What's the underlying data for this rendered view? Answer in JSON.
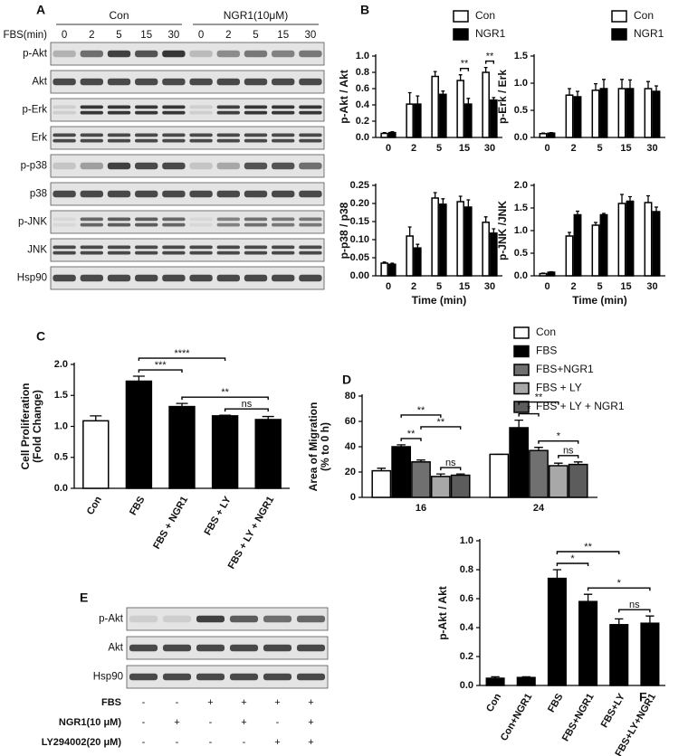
{
  "chart_data": [
    {
      "type": "bar",
      "panel": "B",
      "ylabel": [
        "p-Akt / Akt"
      ],
      "categories": [
        "0",
        "2",
        "5",
        "15",
        "30"
      ],
      "series": [
        {
          "name": "Con",
          "color": "#ffffff",
          "values": [
            0.05,
            0.41,
            0.75,
            0.7,
            0.8
          ],
          "errors": [
            0.01,
            0.14,
            0.06,
            0.07,
            0.06
          ]
        },
        {
          "name": "NGR1",
          "color": "#000000",
          "values": [
            0.06,
            0.41,
            0.53,
            0.41,
            0.46
          ],
          "errors": [
            0.01,
            0.1,
            0.04,
            0.07,
            0.03
          ]
        }
      ],
      "ylim": [
        0,
        1.0
      ],
      "yticks": [
        {
          "value": 0,
          "label": "0.0"
        },
        0.2,
        0.4,
        0.6,
        0.8,
        {
          "value": 1.0,
          "label": "1.0"
        }
      ],
      "legend": "top-right",
      "brackets": [
        {
          "category": 3,
          "from": 0,
          "to": 1,
          "label": "**"
        },
        {
          "category": 4,
          "from": 0,
          "to": 1,
          "label": "**"
        }
      ]
    },
    {
      "type": "bar",
      "ylabel": [
        "p-Erk / Erk"
      ],
      "categories": [
        "0",
        "2",
        "5",
        "15",
        "30"
      ],
      "series": [
        {
          "name": "Con",
          "color": "#ffffff",
          "values": [
            0.07,
            0.78,
            0.87,
            0.9,
            0.9
          ],
          "errors": [
            0.01,
            0.12,
            0.12,
            0.17,
            0.13
          ]
        },
        {
          "name": "NGR1",
          "color": "#000000",
          "values": [
            0.08,
            0.75,
            0.9,
            0.9,
            0.85
          ],
          "errors": [
            0.01,
            0.1,
            0.17,
            0.16,
            0.1
          ]
        }
      ],
      "ylim": [
        0,
        1.5
      ],
      "yticks": [
        {
          "value": 0,
          "label": "0.0"
        },
        0.5,
        {
          "value": 1.0,
          "label": "1.0"
        },
        1.5
      ],
      "legend": "top-right"
    },
    {
      "type": "bar",
      "ylabel": [
        "p-p38 / p38"
      ],
      "xlabel": "Time (min)",
      "categories": [
        "0",
        "2",
        "5",
        "15",
        "30"
      ],
      "series": [
        {
          "name": "Con",
          "color": "#ffffff",
          "values": [
            0.035,
            0.11,
            0.215,
            0.205,
            0.148
          ],
          "errors": [
            0.003,
            0.025,
            0.015,
            0.015,
            0.015
          ]
        },
        {
          "name": "NGR1",
          "color": "#000000",
          "values": [
            0.032,
            0.077,
            0.198,
            0.19,
            0.118
          ],
          "errors": [
            0.003,
            0.01,
            0.015,
            0.02,
            0.012
          ]
        }
      ],
      "ylim": [
        0,
        0.25
      ],
      "yticks": [
        {
          "value": 0,
          "label": "0.00"
        },
        0.05,
        {
          "value": 0.1,
          "label": "0.10"
        },
        0.15,
        {
          "value": 0.2,
          "label": "0.20"
        },
        0.25
      ]
    },
    {
      "type": "bar",
      "ylabel": [
        "p-JNK /JNK"
      ],
      "xlabel": "Time (min)",
      "categories": [
        "0",
        "2",
        "5",
        "15",
        "30"
      ],
      "series": [
        {
          "name": "Con",
          "color": "#ffffff",
          "values": [
            0.05,
            0.88,
            1.12,
            1.6,
            1.62
          ],
          "errors": [
            0.01,
            0.08,
            0.06,
            0.2,
            0.15
          ]
        },
        {
          "name": "NGR1",
          "color": "#000000",
          "values": [
            0.08,
            1.35,
            1.35,
            1.65,
            1.42
          ],
          "errors": [
            0.01,
            0.08,
            0.03,
            0.1,
            0.1
          ]
        }
      ],
      "ylim": [
        0,
        2.0
      ],
      "yticks": [
        {
          "value": 0,
          "label": "0.0"
        },
        0.5,
        {
          "value": 1.0,
          "label": "1.0"
        },
        1.5,
        {
          "value": 2.0,
          "label": "2.0"
        }
      ]
    },
    {
      "type": "bar",
      "panel": "C",
      "ylabel": [
        "Cell Proliferation",
        "(Fold Change)"
      ],
      "xtick_rotation": -60,
      "categories": [
        "Con",
        "FBS",
        "FBS + NGR1",
        "FBS + LY",
        "FBS + LY + NGR1"
      ],
      "values": [
        1.09,
        1.73,
        1.32,
        1.17,
        1.11
      ],
      "errors": [
        0.08,
        0.08,
        0.05,
        0.01,
        0.05
      ],
      "colors": [
        "#ffffff",
        "#000000",
        "#000000",
        "#000000",
        "#000000"
      ],
      "ylim": [
        0,
        2.0
      ],
      "yticks": [
        {
          "value": 0,
          "label": "0.0"
        },
        0.5,
        {
          "value": 1.0,
          "label": "1.0"
        },
        1.5,
        {
          "value": 2.0,
          "label": "2.0"
        }
      ],
      "brackets": [
        {
          "from": 3,
          "to": 4,
          "label": "ns"
        },
        {
          "from": 2,
          "to": 4,
          "label": "**"
        },
        {
          "from": 1,
          "to": 2,
          "label": "***"
        },
        {
          "from": 1,
          "to": 3,
          "label": "****"
        }
      ]
    },
    {
      "type": "bar",
      "panel": "D",
      "ylabel": [
        "Area of Migration",
        "(% to 0 h)"
      ],
      "categories": [
        "16",
        "24"
      ],
      "series": [
        {
          "name": "Con",
          "color": "#ffffff",
          "values": [
            21,
            34
          ],
          "errors": [
            2,
            0
          ]
        },
        {
          "name": "FBS",
          "color": "#000000",
          "values": [
            40,
            55
          ],
          "errors": [
            1.5,
            6
          ]
        },
        {
          "name": "FBS+NGR1",
          "color": "#707070",
          "values": [
            28,
            37
          ],
          "errors": [
            1.5,
            2.5
          ]
        },
        {
          "name": "FBS + LY",
          "color": "#a8a8a8",
          "values": [
            16.5,
            25
          ],
          "errors": [
            2,
            2
          ]
        },
        {
          "name": "FBS + LY + NGR1",
          "color": "#5c5c5c",
          "values": [
            17.5,
            26
          ],
          "errors": [
            1,
            2
          ]
        }
      ],
      "ylim": [
        0,
        80
      ],
      "yticks": [
        0,
        20,
        40,
        60,
        80
      ],
      "legend": "right",
      "brackets": [
        {
          "category": 0,
          "from": 1,
          "to": 2,
          "label": "**"
        },
        {
          "category": 0,
          "from": 3,
          "to": 4,
          "label": "ns"
        },
        {
          "category": 0,
          "from": 2,
          "to": 4,
          "label": "**"
        },
        {
          "category": 0,
          "from": 1,
          "to": 3,
          "label": "**"
        },
        {
          "category": 1,
          "from": 3,
          "to": 4,
          "label": "ns"
        },
        {
          "category": 1,
          "from": 2,
          "to": 4,
          "label": "*"
        },
        {
          "category": 1,
          "from": 1,
          "to": 2,
          "label": "*"
        },
        {
          "category": 1,
          "from": 1,
          "to": 3,
          "label": "**"
        }
      ]
    },
    {
      "type": "bar",
      "panel": "F",
      "ylabel": [
        "p-Akt / Akt"
      ],
      "xtick_rotation": -60,
      "categories": [
        "Con",
        "Con+NGR1",
        "FBS",
        "FBS+NGR1",
        "FBS+LY",
        "FBS+LY+NGR1"
      ],
      "values": [
        0.05,
        0.055,
        0.74,
        0.58,
        0.42,
        0.43
      ],
      "errors": [
        0.01,
        0.005,
        0.06,
        0.05,
        0.04,
        0.05
      ],
      "color": "#000000",
      "ylim": [
        0,
        1.0
      ],
      "yticks": [
        {
          "value": 0,
          "label": "0.0"
        },
        0.2,
        0.4,
        0.6,
        0.8,
        {
          "value": 1.0,
          "label": "1.0"
        }
      ],
      "brackets": [
        {
          "from": 4,
          "to": 5,
          "label": "ns"
        },
        {
          "from": 3,
          "to": 5,
          "label": "*"
        },
        {
          "from": 2,
          "to": 3,
          "label": "*"
        },
        {
          "from": 2,
          "to": 4,
          "label": "**"
        }
      ]
    }
  ],
  "blots": [
    {
      "label": "A",
      "row_label": "FBS(min)",
      "groups": [
        "Con",
        "NGR1(10μM)"
      ],
      "lanes": [
        "0",
        "2",
        "5",
        "15",
        "30",
        "0",
        "2",
        "5",
        "15",
        "30"
      ],
      "rows": [
        "p-Akt",
        "Akt",
        "p-Erk",
        "Erk",
        "p-p38",
        "p38",
        "p-JNK",
        "JNK",
        "Hsp90"
      ]
    },
    {
      "label": "E",
      "rows": [
        "p-Akt",
        "Akt",
        "Hsp90"
      ],
      "treatments": [
        {
          "name": "FBS",
          "signs": [
            "-",
            "-",
            "+",
            "+",
            "+",
            "+"
          ]
        },
        {
          "name": "NGR1(10 μM)",
          "signs": [
            "-",
            "+",
            "-",
            "+",
            "-",
            "+"
          ]
        },
        {
          "name": "LY294002(20 μM)",
          "signs": [
            "-",
            "-",
            "-",
            "-",
            "+",
            "+"
          ]
        }
      ]
    }
  ]
}
